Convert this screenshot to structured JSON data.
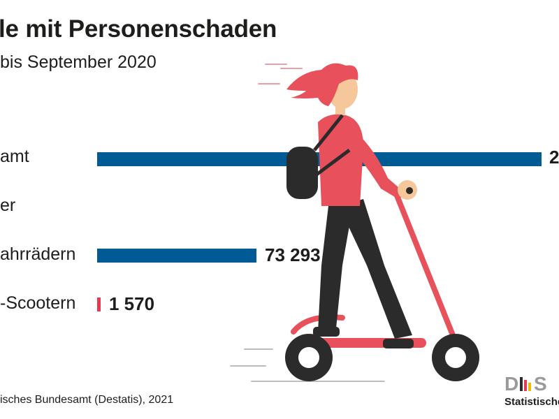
{
  "header": {
    "title": "le mit Personenschaden",
    "subtitle": "bis September 2020"
  },
  "chart_data": {
    "type": "bar",
    "orientation": "horizontal",
    "categories": [
      "amt",
      "er",
      "ahrrädern",
      "-Scootern"
    ],
    "value_labels": [
      "2",
      "",
      "73 293",
      "1 570"
    ],
    "values": [
      null,
      null,
      73293,
      1570
    ],
    "xlim": [
      0,
      100000
    ],
    "colors": [
      "#005a94",
      null,
      "#005a94",
      "#e63950"
    ],
    "grid": false,
    "legend": "none"
  },
  "footer": {
    "source": "isches Bundesamt (Destatis), 2021",
    "logo_letters": "D|S",
    "logo_name": "Statistische"
  },
  "colors": {
    "bar_blue": "#005a94",
    "accent_red": "#e63950",
    "skin": "#f6c79b",
    "hair": "#e8505b",
    "dark": "#2b2b2b",
    "gray": "#9a9a9a",
    "logo_yellow": "#f5b800"
  },
  "illustration": {
    "icon": "person-on-e-scooter-icon"
  }
}
